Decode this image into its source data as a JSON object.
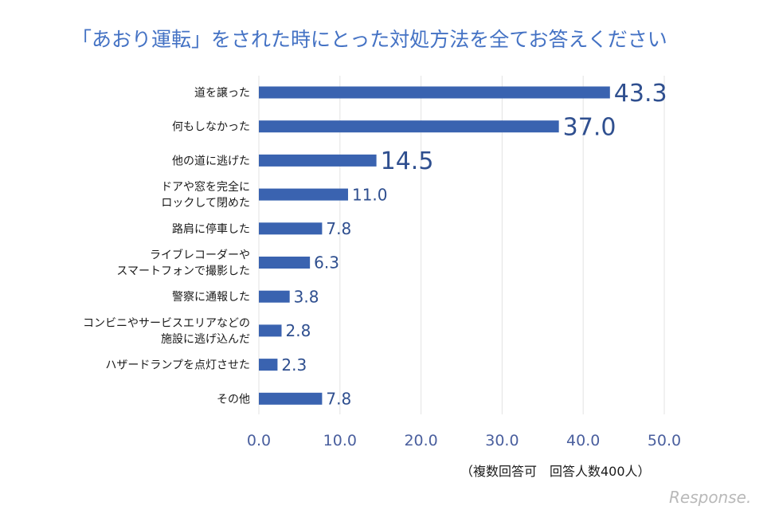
{
  "chart_data": {
    "type": "bar",
    "orientation": "horizontal",
    "title": "「あおり運転」をされた時にとった対処方法を全てお答えください",
    "categories": [
      [
        "道を譲った"
      ],
      [
        "何もしなかった"
      ],
      [
        "他の道に逃げた"
      ],
      [
        "ドアや窓を完全に",
        "ロックして閉めた"
      ],
      [
        "路肩に停車した"
      ],
      [
        "ライブレコーダーや",
        "スマートフォンで撮影した"
      ],
      [
        "警察に通報した"
      ],
      [
        "コンビニやサービスエリアなどの",
        "施設に逃げ込んだ"
      ],
      [
        "ハザードランプを点灯させた"
      ],
      [
        "その他"
      ]
    ],
    "values": [
      43.3,
      37.0,
      14.5,
      11.0,
      7.8,
      6.3,
      3.8,
      2.8,
      2.3,
      7.8
    ],
    "value_labels": [
      "43.3",
      "37.0",
      "14.5",
      "11.0",
      "7.8",
      "6.3",
      "3.8",
      "2.8",
      "2.3",
      "7.8"
    ],
    "xlim": [
      0,
      50
    ],
    "xticks": [
      "0.0",
      "10.0",
      "20.0",
      "30.0",
      "40.0",
      "50.0"
    ],
    "grid": true,
    "bar_color": "#3a63b0",
    "note": "（複数回答可　回答人数400人）"
  },
  "watermark": "Response."
}
